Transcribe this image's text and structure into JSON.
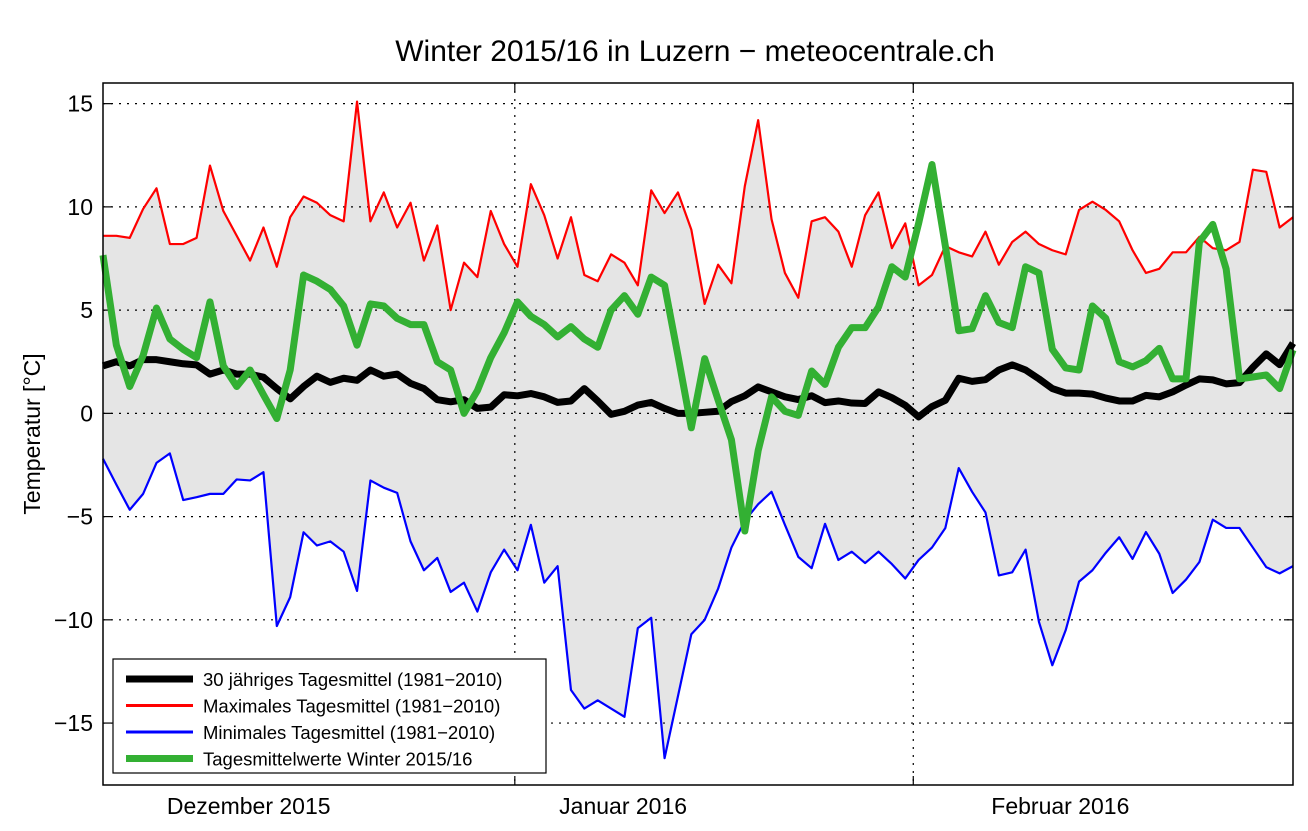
{
  "chart_data": {
    "type": "line",
    "title": "Winter 2015/16 in Luzern − meteocentrale.ch",
    "xlabel": "",
    "ylabel": "Temperatur [°C]",
    "xlim": [
      0,
      89
    ],
    "ylim": [
      -18,
      16
    ],
    "grid": true,
    "legend_position": "bottom-left",
    "yticks": [
      15,
      10,
      5,
      0,
      -5,
      -10,
      -15
    ],
    "ytick_labels": [
      "15",
      "10",
      "5",
      "0",
      "−5",
      "−10",
      "−15"
    ],
    "month_gridlines": [
      30.8,
      60.6
    ],
    "month_labels": [
      {
        "label": "Dezember 2015",
        "x": 10.9
      },
      {
        "label": "Januar 2016",
        "x": 38.9
      },
      {
        "label": "Februar 2016",
        "x": 71.6
      }
    ],
    "fill_between": {
      "upper": "Maximales Tagesmittel (1981−2010)",
      "lower": "Minimales Tagesmittel (1981−2010)",
      "color": "#e5e5e5"
    },
    "series": [
      {
        "name": "Maximales Tagesmittel (1981−2010)",
        "color": "#ff0000",
        "width": 2.2,
        "values": [
          8.6,
          8.6,
          8.5,
          9.9,
          10.9,
          8.2,
          8.2,
          8.5,
          12.0,
          9.8,
          8.6,
          7.4,
          9.0,
          7.1,
          9.5,
          10.5,
          10.2,
          9.6,
          9.3,
          15.1,
          9.3,
          10.7,
          9.0,
          10.2,
          7.4,
          9.1,
          5.0,
          7.3,
          6.6,
          9.8,
          8.2,
          7.1,
          11.1,
          9.6,
          7.5,
          9.5,
          6.7,
          6.4,
          7.7,
          7.3,
          6.2,
          10.8,
          9.7,
          10.7,
          8.9,
          5.3,
          7.2,
          6.3,
          11.0,
          14.2,
          9.4,
          6.8,
          5.6,
          9.3,
          9.5,
          8.8,
          7.1,
          9.6,
          10.7,
          8.0,
          9.2,
          6.2,
          6.7,
          8.1,
          7.8,
          7.6,
          8.8,
          7.2,
          8.3,
          8.8,
          8.2,
          7.9,
          7.7,
          9.85,
          10.25,
          9.85,
          9.3,
          7.9,
          6.8,
          7.0,
          7.8,
          7.8,
          8.55,
          8.0,
          7.9,
          8.3,
          11.8,
          11.7,
          9.0,
          9.5
        ]
      },
      {
        "name": "Minimales Tagesmittel (1981−2010)",
        "color": "#0000ff",
        "width": 2.2,
        "values": [
          -2.2,
          -3.45,
          -4.67,
          -3.9,
          -2.4,
          -1.94,
          -4.2,
          -4.06,
          -3.9,
          -3.9,
          -3.2,
          -3.25,
          -2.85,
          -10.3,
          -8.9,
          -5.76,
          -6.4,
          -6.2,
          -6.7,
          -8.6,
          -3.25,
          -3.6,
          -3.85,
          -6.2,
          -7.6,
          -7.0,
          -8.65,
          -8.2,
          -9.6,
          -7.7,
          -6.6,
          -7.6,
          -5.4,
          -8.2,
          -7.4,
          -13.4,
          -14.3,
          -13.9,
          -14.3,
          -14.7,
          -10.4,
          -9.9,
          -16.7,
          -13.7,
          -10.7,
          -10.0,
          -8.5,
          -6.5,
          -5.2,
          -4.4,
          -3.8,
          -5.4,
          -6.95,
          -7.5,
          -5.35,
          -7.1,
          -6.7,
          -7.25,
          -6.7,
          -7.3,
          -8.0,
          -7.1,
          -6.5,
          -5.55,
          -2.65,
          -3.8,
          -4.8,
          -7.85,
          -7.7,
          -6.6,
          -10.1,
          -12.2,
          -10.5,
          -8.15,
          -7.6,
          -6.75,
          -6.0,
          -7.05,
          -5.75,
          -6.8,
          -8.7,
          -8.05,
          -7.2,
          -5.15,
          -5.55,
          -5.55,
          -6.5,
          -7.45,
          -7.75,
          -7.4
        ]
      },
      {
        "name": "30 jähriges Tagesmittel (1981−2010)",
        "color": "#000000",
        "width": 7,
        "values": [
          2.3,
          2.5,
          2.3,
          2.6,
          2.6,
          2.5,
          2.4,
          2.35,
          1.9,
          2.1,
          1.9,
          1.9,
          1.75,
          1.2,
          0.7,
          1.3,
          1.8,
          1.5,
          1.7,
          1.6,
          2.1,
          1.8,
          1.9,
          1.45,
          1.2,
          0.66,
          0.56,
          0.66,
          0.24,
          0.3,
          0.9,
          0.85,
          0.96,
          0.8,
          0.53,
          0.6,
          1.2,
          0.6,
          -0.05,
          0.1,
          0.4,
          0.53,
          0.24,
          0.0,
          0.0,
          0.05,
          0.1,
          0.57,
          0.85,
          1.28,
          1.04,
          0.8,
          0.67,
          0.85,
          0.52,
          0.6,
          0.5,
          0.48,
          1.04,
          0.76,
          0.39,
          -0.17,
          0.33,
          0.63,
          1.7,
          1.55,
          1.63,
          2.1,
          2.35,
          2.1,
          1.67,
          1.2,
          0.98,
          0.98,
          0.93,
          0.74,
          0.6,
          0.6,
          0.87,
          0.8,
          1.04,
          1.37,
          1.67,
          1.62,
          1.43,
          1.49,
          2.23,
          2.88,
          2.36,
          3.4
        ]
      },
      {
        "name": "Tagesmittelwerte Winter 2015/16",
        "color": "#33b033",
        "width": 7,
        "values": [
          7.66,
          3.3,
          1.3,
          2.8,
          5.1,
          3.6,
          3.1,
          2.7,
          5.4,
          2.3,
          1.3,
          2.1,
          0.9,
          -0.25,
          2.1,
          6.7,
          6.4,
          6.0,
          5.2,
          3.3,
          5.3,
          5.2,
          4.6,
          4.3,
          4.3,
          2.5,
          2.1,
          0.0,
          1.1,
          2.7,
          3.9,
          5.4,
          4.7,
          4.3,
          3.7,
          4.2,
          3.6,
          3.2,
          5.0,
          5.7,
          4.8,
          6.6,
          6.2,
          2.8,
          -0.7,
          2.65,
          0.65,
          -1.28,
          -5.7,
          -1.8,
          0.8,
          0.1,
          -0.1,
          2.05,
          1.4,
          3.2,
          4.15,
          4.15,
          5.15,
          7.1,
          6.6,
          9.2,
          12.05,
          8.1,
          4.0,
          4.1,
          5.7,
          4.4,
          4.15,
          7.1,
          6.8,
          3.1,
          2.2,
          2.1,
          5.2,
          4.6,
          2.5,
          2.25,
          2.55,
          3.15,
          1.67,
          1.67,
          8.3,
          9.15,
          7.0,
          1.67,
          1.76,
          1.86,
          1.2,
          3.07
        ]
      }
    ],
    "legend": [
      {
        "label": "30 jähriges Tagesmittel (1981−2010)",
        "color": "#000000",
        "width": 7
      },
      {
        "label": "Maximales Tagesmittel (1981−2010)",
        "color": "#ff0000",
        "width": 3
      },
      {
        "label": "Minimales Tagesmittel (1981−2010)",
        "color": "#0000ff",
        "width": 3
      },
      {
        "label": "Tagesmittelwerte Winter 2015/16",
        "color": "#33b033",
        "width": 7
      }
    ]
  }
}
